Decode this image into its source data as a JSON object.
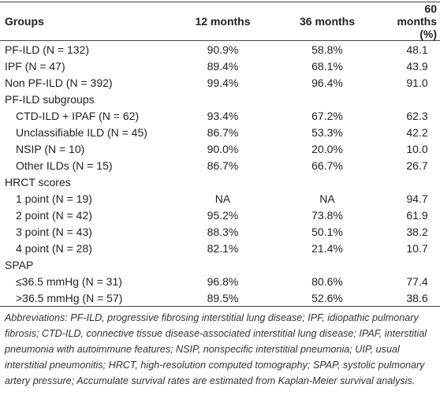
{
  "table": {
    "header": [
      "Groups",
      "12 months",
      "36 months",
      "60 months (%)"
    ],
    "body": [
      [
        "PF-ILD (N = 132)",
        "90.9%",
        "58.8%",
        "48.1"
      ],
      [
        "IPF (N = 47)",
        "89.4%",
        "68.1%",
        "43.9"
      ],
      [
        "Non PF-ILD (N = 392)",
        "99.4%",
        "96.4%",
        "91.0"
      ],
      {
        "title": "PF-ILD subgroups",
        "rows": [
          [
            "CTD-ILD + IPAF (N = 62)",
            "93.4%",
            "67.2%",
            "62.3"
          ],
          [
            "Unclassifiable ILD (N = 45)",
            "86.7%",
            "53.3%",
            "42.2"
          ],
          [
            "NSIP (N = 10)",
            "90.0%",
            "20.0%",
            "10.0"
          ],
          [
            "Other ILDs (N = 15)",
            "86.7%",
            "66.7%",
            "26.7"
          ]
        ]
      },
      {
        "title": "HRCT scores",
        "rows": [
          [
            "1 point (N = 19)",
            "NA",
            "NA",
            "94.7"
          ],
          [
            "2 point (N = 42)",
            "95.2%",
            "73.8%",
            "61.9"
          ],
          [
            "3 point (N = 43)",
            "88.3%",
            "50.1%",
            "38.2"
          ],
          [
            "4 point (N = 28)",
            "82.1%",
            "21.4%",
            "10.7"
          ]
        ]
      },
      {
        "title": "SPAP",
        "rows": [
          [
            "≤36.5 mmHg (N = 31)",
            "96.8%",
            "80.6%",
            "77.4"
          ],
          [
            ">36.5 mmHg (N = 57)",
            "89.5%",
            "52.6%",
            "38.6"
          ]
        ]
      }
    ],
    "footnote": "Abbreviations: PF-ILD, progressive fibrosing interstitial lung disease; IPF, idiopathic pulmonary fibrosis; CTD-ILD, connective tissue disease-associated interstitial lung disease; IPAF, interstitial pneumonia with autoimmune features; NSIP, nonspecific interstitial pneumonia; UIP, usual interstitial pneumonitis; HRCT, high-resolution computed tomography; SPAP, systolic pulmonary artery pressure; Accumulate survival rates are estimated from Kaplan-Meier survival analysis."
  }
}
